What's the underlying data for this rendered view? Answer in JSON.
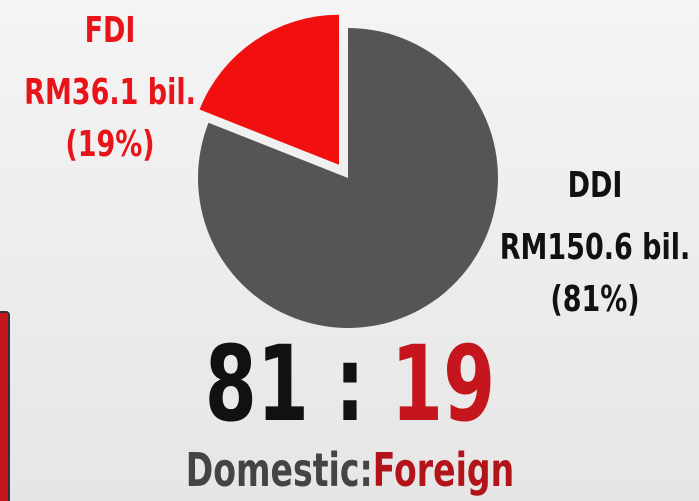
{
  "chart_data": {
    "type": "pie",
    "categories": [
      "DDI",
      "FDI"
    ],
    "values": [
      81,
      19
    ],
    "value_labels": [
      "(81%)",
      "(19%)"
    ],
    "amount_labels": [
      "RM150.6 bil.",
      "RM36.1 bil."
    ],
    "colors": [
      "#555555",
      "#f20f0f"
    ],
    "label_colors": [
      "#111111",
      "#e8141a"
    ],
    "explode": [
      false,
      true
    ],
    "ratio": {
      "left": "81",
      "separator": " : ",
      "right": "19"
    },
    "caption": {
      "left": "Domestic:",
      "right": "Foreign"
    }
  }
}
